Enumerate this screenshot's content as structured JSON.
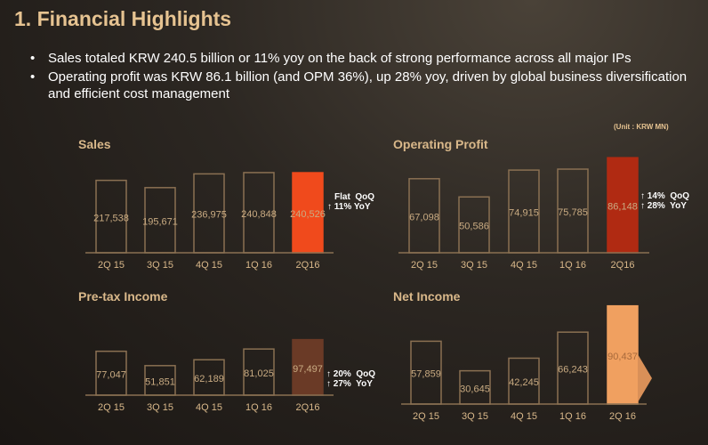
{
  "title": "1. Financial Highlights",
  "bullets": [
    "Sales totaled KRW 240.5 billion or 11% yoy on the back of strong performance across all major IPs",
    "Operating profit was KRW 86.1 billion (and OPM 36%), up 28% yoy, driven by global business diversification and efficient cost management"
  ],
  "unit": "(Unit : KRW  MN)",
  "chart_data": [
    {
      "type": "bar",
      "title": "Sales",
      "categories": [
        "2Q 15",
        "3Q 15",
        "4Q 15",
        "1Q 16",
        "2Q16"
      ],
      "values": [
        217538,
        195671,
        236975,
        240848,
        240526
      ],
      "labels": [
        "217,538",
        "195,671",
        "236,975",
        "240,848",
        "240,526"
      ],
      "highlight_color": "#f04a1c",
      "notes": [
        "Flat  QoQ",
        "↑ 11% YoY"
      ]
    },
    {
      "type": "bar",
      "title": "Operating Profit",
      "categories": [
        "2Q 15",
        "3Q 15",
        "4Q 15",
        "1Q 16",
        "2Q16"
      ],
      "values": [
        67098,
        50586,
        74915,
        75785,
        86148
      ],
      "labels": [
        "67,098",
        "50,586",
        "74,915",
        "75,785",
        "86,148"
      ],
      "highlight_color": "#b02a12",
      "notes": [
        "↑ 14%  QoQ",
        "↑ 28%  YoY"
      ]
    },
    {
      "type": "bar",
      "title": "Pre-tax Income",
      "categories": [
        "2Q 15",
        "3Q 15",
        "4Q 15",
        "1Q 16",
        "2Q16"
      ],
      "values": [
        77047,
        51851,
        62189,
        81025,
        97497
      ],
      "labels": [
        "77,047",
        "51,851",
        "62,189",
        "81,025",
        "97,497"
      ],
      "highlight_color": "#6a3a26",
      "notes": [
        "↑ 20%  QoQ",
        "↑ 27%  YoY"
      ]
    },
    {
      "type": "bar",
      "title": "Net Income",
      "categories": [
        "2Q 15",
        "3Q 15",
        "4Q 15",
        "1Q 16",
        "2Q 16"
      ],
      "values": [
        57859,
        30645,
        42245,
        66243,
        90437
      ],
      "labels": [
        "57,859",
        "30,645",
        "42,245",
        "66,243",
        "90,437"
      ],
      "highlight_color": "#f0a060",
      "notes": []
    }
  ]
}
